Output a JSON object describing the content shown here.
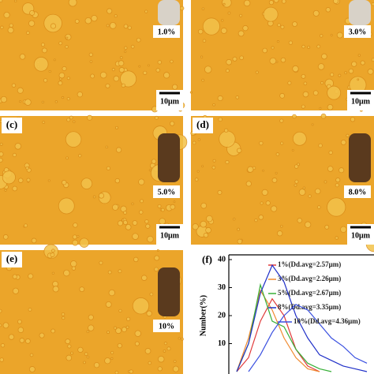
{
  "panels": [
    {
      "concentration": "1.0%",
      "scale_bar": "10μm"
    },
    {
      "concentration": "3.0%",
      "scale_bar": "10μm"
    },
    {
      "label": "(c)",
      "concentration": "5.0%",
      "scale_bar": "10μm"
    },
    {
      "label": "(d)",
      "concentration": "8.0%",
      "scale_bar": "10μm"
    },
    {
      "label": "(e)",
      "concentration": "10%"
    }
  ],
  "chart_data": {
    "type": "line",
    "label": "(f)",
    "y_label": "Number(%)",
    "categories": [
      null,
      null,
      null,
      null,
      null,
      null,
      null,
      null,
      null,
      null,
      null,
      null
    ],
    "series": [
      {
        "name": "1%(Dd.avg=2.57μm)",
        "color": "#e03a3a",
        "values": [
          0,
          5,
          18,
          26,
          20,
          8,
          2,
          0,
          null,
          null,
          null,
          null
        ]
      },
      {
        "name": "3%(Dd.avg=2.26μm)",
        "color": "#f08a30",
        "values": [
          0,
          12,
          29,
          22,
          12,
          5,
          1,
          0,
          null,
          null,
          null,
          null
        ]
      },
      {
        "name": "5%(Dd.avg=2.67μm)",
        "color": "#38b038",
        "values": [
          0,
          10,
          31,
          18,
          16,
          8,
          3,
          1,
          0,
          null,
          null,
          null
        ]
      },
      {
        "name": "8%(Dd.avg=3.35μm)",
        "color": "#2030c8",
        "values": [
          0,
          10,
          28,
          38,
          32,
          20,
          12,
          6,
          4,
          2,
          1,
          0
        ]
      },
      {
        "name": "10%(Dd.avg=4.36μm)",
        "color": "#3a50e0",
        "values": [
          null,
          0,
          6,
          14,
          20,
          24,
          22,
          17,
          12,
          9,
          5,
          3
        ]
      }
    ],
    "ylim": [
      0,
      40
    ],
    "yticks": [
      10,
      20,
      30,
      40
    ]
  }
}
